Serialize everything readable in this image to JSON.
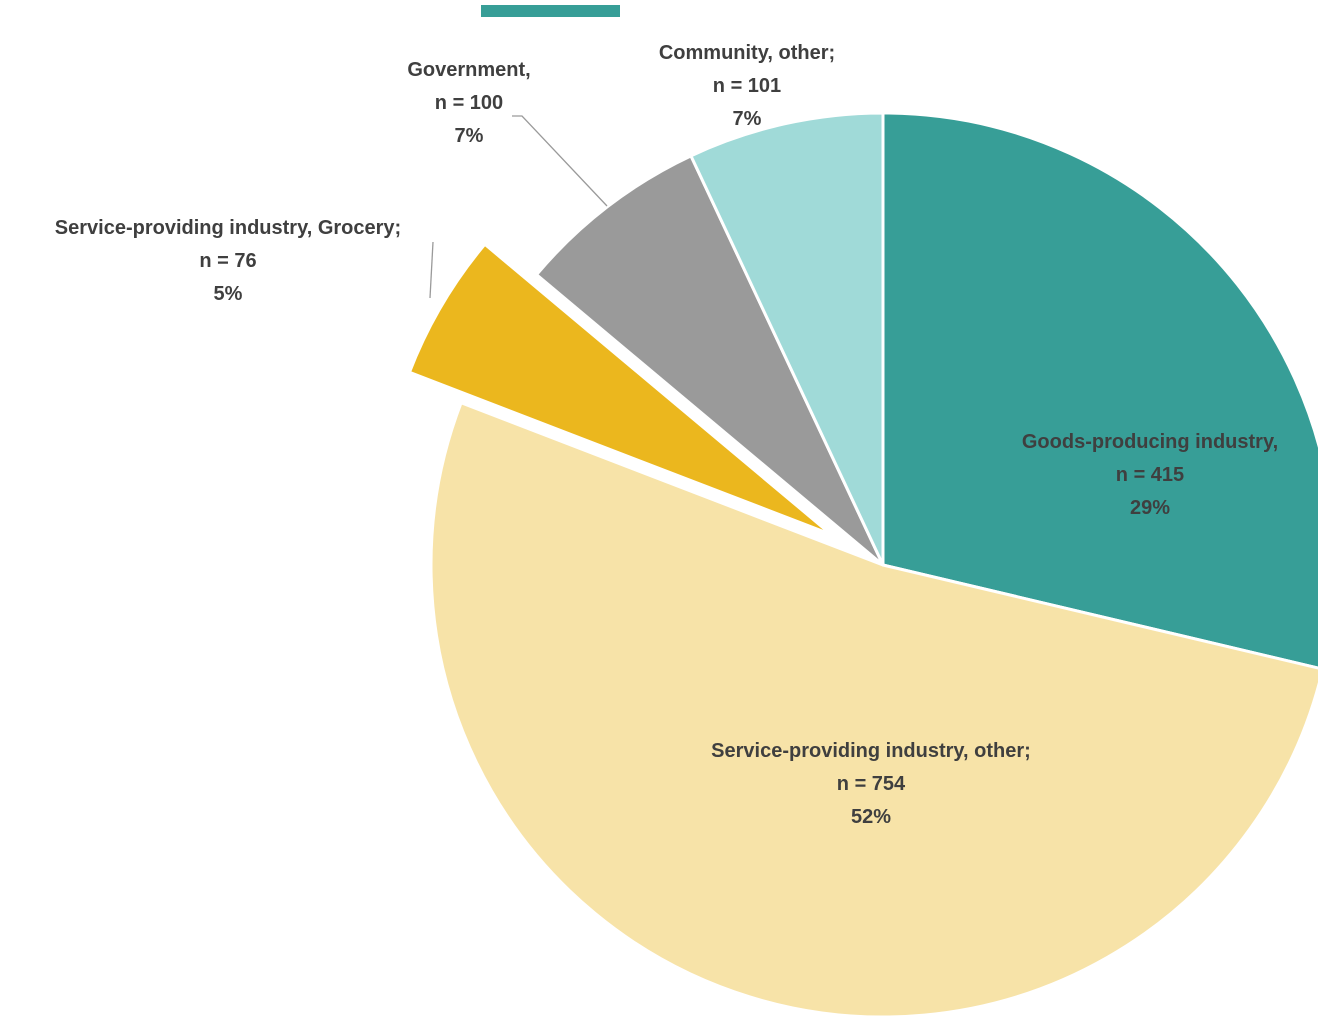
{
  "chart_data": {
    "type": "pie",
    "title": "",
    "legend": {
      "visible_fragment": "top-left",
      "color": "#379e97"
    },
    "slices": [
      {
        "name": "Goods-producing industry",
        "n": 415,
        "percent": 29,
        "color": "#379e97",
        "exploded": false,
        "label_lines": [
          "Goods-producing industry,",
          "n = 415",
          "29%"
        ]
      },
      {
        "name": "Service-providing industry, other",
        "n": 754,
        "percent": 52,
        "color": "#f7e3a8",
        "exploded": false,
        "label_lines": [
          "Service-providing industry, other;",
          "n = 754",
          "52%"
        ]
      },
      {
        "name": "Service-providing industry, Grocery",
        "n": 76,
        "percent": 5,
        "color": "#ebb71e",
        "exploded": true,
        "label_lines": [
          "Service-providing industry, Grocery;",
          "n = 76",
          "5%"
        ]
      },
      {
        "name": "Government",
        "n": 100,
        "percent": 7,
        "color": "#9a9a9a",
        "exploded": false,
        "label_lines": [
          "Government,",
          "n = 100",
          "7%"
        ]
      },
      {
        "name": "Community, other",
        "n": 101,
        "percent": 7,
        "color": "#a0dad8",
        "exploded": false,
        "label_lines": [
          "Community, other;",
          "n = 101",
          "7%"
        ]
      }
    ]
  }
}
